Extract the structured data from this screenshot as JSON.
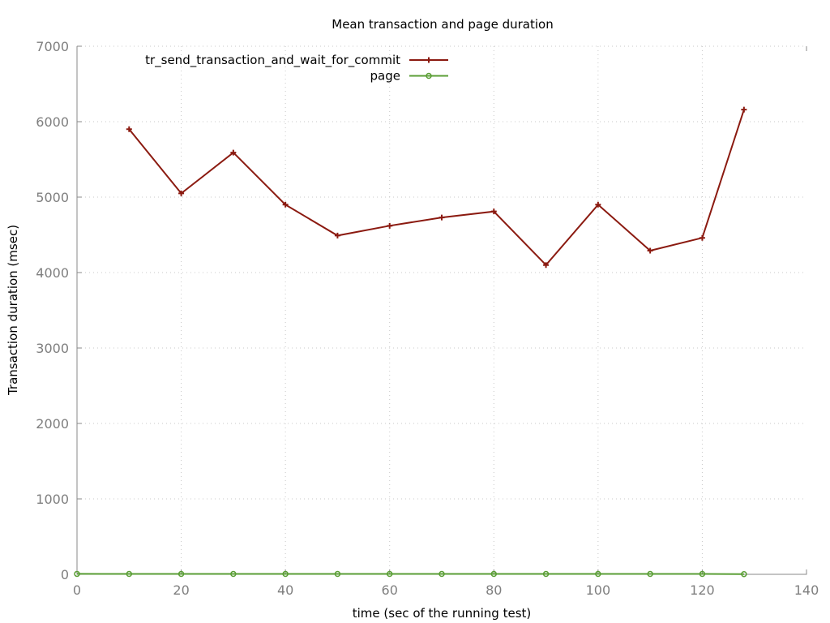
{
  "chart_data": {
    "type": "line",
    "title": "Mean transaction and page duration",
    "xlabel": "time (sec of the running test)",
    "ylabel": "Transaction duration (msec)",
    "xlim": [
      0,
      140
    ],
    "ylim": [
      0,
      7000
    ],
    "xticks": [
      0,
      20,
      40,
      60,
      80,
      100,
      120,
      140
    ],
    "yticks": [
      0,
      1000,
      2000,
      3000,
      4000,
      5000,
      6000,
      7000
    ],
    "grid": true,
    "legend_position": "top-left",
    "series": [
      {
        "name": "tr_send_transaction_and_wait_for_commit",
        "color": "#8b1a10",
        "marker": "plus",
        "x": [
          10,
          20,
          30,
          40,
          50,
          60,
          70,
          80,
          90,
          100,
          110,
          120,
          128
        ],
        "y": [
          5900,
          5050,
          5590,
          4900,
          4490,
          4620,
          4730,
          4810,
          4100,
          4900,
          4290,
          4460,
          6160
        ]
      },
      {
        "name": "page",
        "color": "#5a9e35",
        "marker": "circle",
        "x": [
          0,
          10,
          20,
          30,
          40,
          50,
          60,
          70,
          80,
          90,
          100,
          110,
          120,
          128
        ],
        "y": [
          6,
          5,
          5,
          5,
          5,
          5,
          5,
          5,
          5,
          5,
          5,
          5,
          5,
          3
        ]
      }
    ]
  }
}
